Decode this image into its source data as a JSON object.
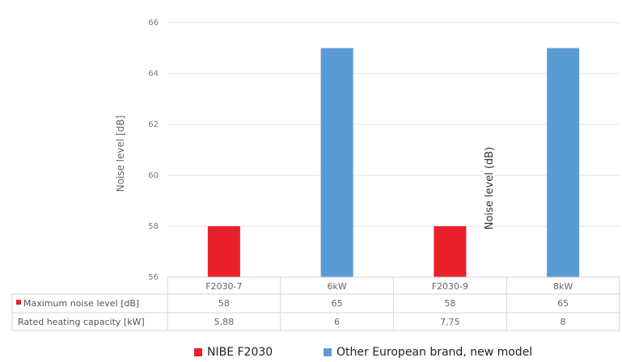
{
  "chart_data": {
    "type": "bar",
    "title": "",
    "ylabel": "Noise level [dB]",
    "ylabel_secondary": "Noise level (dB)",
    "ylim": [
      56,
      66
    ],
    "yticks": [
      "56",
      "58",
      "60",
      "62",
      "64",
      "66"
    ],
    "yticks_values": [
      56,
      58,
      60,
      62,
      64,
      66
    ],
    "categories": [
      "F2030-7",
      "6kW",
      "F2030-9",
      "8kW"
    ],
    "values": [
      58,
      65,
      58,
      65
    ],
    "bar_series_index": [
      0,
      1,
      0,
      1
    ],
    "series": [
      {
        "name": "NIBE F2030",
        "color": "#e8202a"
      },
      {
        "name": "Other European brand, new model",
        "color": "#5b9bd5"
      }
    ],
    "table": {
      "rows": [
        {
          "header": "Maximum noise level [dB]",
          "marker_color": "#e8202a",
          "cells": [
            "58",
            "65",
            "58",
            "65"
          ]
        },
        {
          "header": "Rated heating capacity [kW]",
          "cells": [
            "5,88",
            "6",
            "7,75",
            "8"
          ]
        }
      ]
    },
    "grid": true,
    "legend_position": "bottom"
  }
}
